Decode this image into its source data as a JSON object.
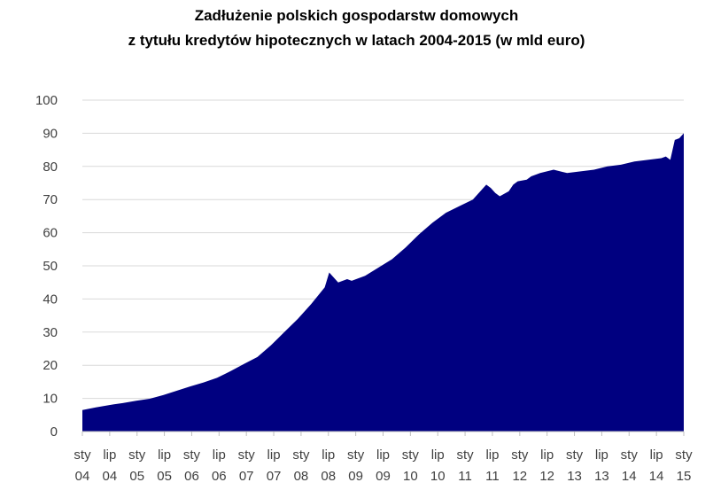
{
  "chart_data": {
    "type": "area",
    "title_lines": [
      "Zadłużenie polskich gospodarstw domowych",
      "z tytułu kredytów hipotecznych w latach 2004-2015 (w mld euro)"
    ],
    "xlabel": "",
    "ylabel": "",
    "ylim": [
      0,
      100
    ],
    "yticks": [
      0,
      10,
      20,
      30,
      40,
      50,
      60,
      70,
      80,
      90,
      100
    ],
    "grid": true,
    "legend": "none",
    "fill_color": "#000080",
    "x_tick_labels": [
      {
        "top": "sty",
        "bottom": "04"
      },
      {
        "top": "lip",
        "bottom": "04"
      },
      {
        "top": "sty",
        "bottom": "05"
      },
      {
        "top": "lip",
        "bottom": "05"
      },
      {
        "top": "sty",
        "bottom": "06"
      },
      {
        "top": "lip",
        "bottom": "06"
      },
      {
        "top": "sty",
        "bottom": "07"
      },
      {
        "top": "lip",
        "bottom": "07"
      },
      {
        "top": "sty",
        "bottom": "08"
      },
      {
        "top": "lip",
        "bottom": "08"
      },
      {
        "top": "sty",
        "bottom": "09"
      },
      {
        "top": "lip",
        "bottom": "09"
      },
      {
        "top": "sty",
        "bottom": "10"
      },
      {
        "top": "lip",
        "bottom": "10"
      },
      {
        "top": "sty",
        "bottom": "11"
      },
      {
        "top": "lip",
        "bottom": "11"
      },
      {
        "top": "sty",
        "bottom": "12"
      },
      {
        "top": "lip",
        "bottom": "12"
      },
      {
        "top": "sty",
        "bottom": "13"
      },
      {
        "top": "lip",
        "bottom": "13"
      },
      {
        "top": "sty",
        "bottom": "14"
      },
      {
        "top": "lip",
        "bottom": "14"
      },
      {
        "top": "sty",
        "bottom": "15"
      }
    ],
    "series": [
      {
        "x": [
          "2004-01",
          "2004-04",
          "2004-07",
          "2004-10",
          "2005-01",
          "2005-04",
          "2005-07",
          "2005-10",
          "2006-01",
          "2006-04",
          "2006-07",
          "2006-10",
          "2007-01",
          "2007-04",
          "2007-07",
          "2007-10",
          "2008-01",
          "2008-04",
          "2008-07",
          "2008-08",
          "2008-10",
          "2008-12",
          "2009-01",
          "2009-04",
          "2009-07",
          "2009-10",
          "2010-01",
          "2010-04",
          "2010-07",
          "2010-10",
          "2011-01",
          "2011-04",
          "2011-07",
          "2011-08",
          "2011-09",
          "2011-10",
          "2011-12",
          "2012-01",
          "2012-02",
          "2012-04",
          "2012-05",
          "2012-07",
          "2012-10",
          "2013-01",
          "2013-04",
          "2013-07",
          "2013-10",
          "2014-01",
          "2014-04",
          "2014-07",
          "2014-10",
          "2014-11",
          "2014-12",
          "2015-01",
          "2015-02",
          "2015-03"
        ],
        "values": [
          6.5,
          7.3,
          8.0,
          8.6,
          9.3,
          9.9,
          11.0,
          12.3,
          13.6,
          14.8,
          16.2,
          18.2,
          20.4,
          22.5,
          26.0,
          30.0,
          34.0,
          38.5,
          43.5,
          48.0,
          45.0,
          46.0,
          45.5,
          47.0,
          49.5,
          52.0,
          55.5,
          59.5,
          63.0,
          66.0,
          68.0,
          70.0,
          74.5,
          73.5,
          72.0,
          71.0,
          72.5,
          74.5,
          75.5,
          76.0,
          77.0,
          78.0,
          79.0,
          78.0,
          78.5,
          79.0,
          80.0,
          80.5,
          81.5,
          82.0,
          82.5,
          83.0,
          82.0,
          88.0,
          88.5,
          90.0
        ]
      }
    ]
  }
}
